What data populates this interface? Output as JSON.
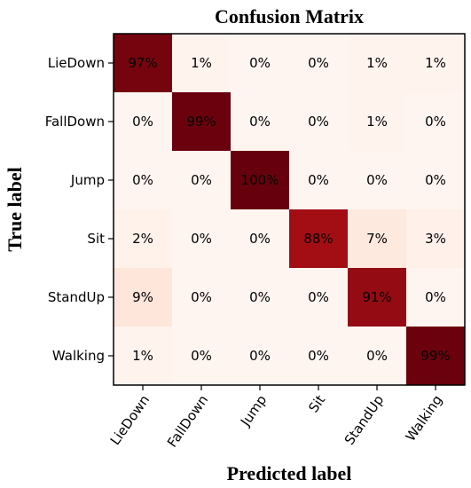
{
  "chart_data": {
    "type": "heatmap",
    "title": "Confusion Matrix",
    "xlabel": "Predicted label",
    "ylabel": "True label",
    "x_categories": [
      "LieDown",
      "FallDown",
      "Jump",
      "Sit",
      "StandUp",
      "Walking"
    ],
    "y_categories": [
      "LieDown",
      "FallDown",
      "Jump",
      "Sit",
      "StandUp",
      "Walking"
    ],
    "values": [
      [
        97,
        1,
        0,
        0,
        1,
        1
      ],
      [
        0,
        99,
        0,
        0,
        1,
        0
      ],
      [
        0,
        0,
        100,
        0,
        0,
        0
      ],
      [
        2,
        0,
        0,
        88,
        7,
        3
      ],
      [
        9,
        0,
        0,
        0,
        91,
        0
      ],
      [
        1,
        0,
        0,
        0,
        0,
        99
      ]
    ],
    "value_format": "percent",
    "colormap": "Reds",
    "color_low": "#fff5f0",
    "color_high": "#67000d"
  }
}
